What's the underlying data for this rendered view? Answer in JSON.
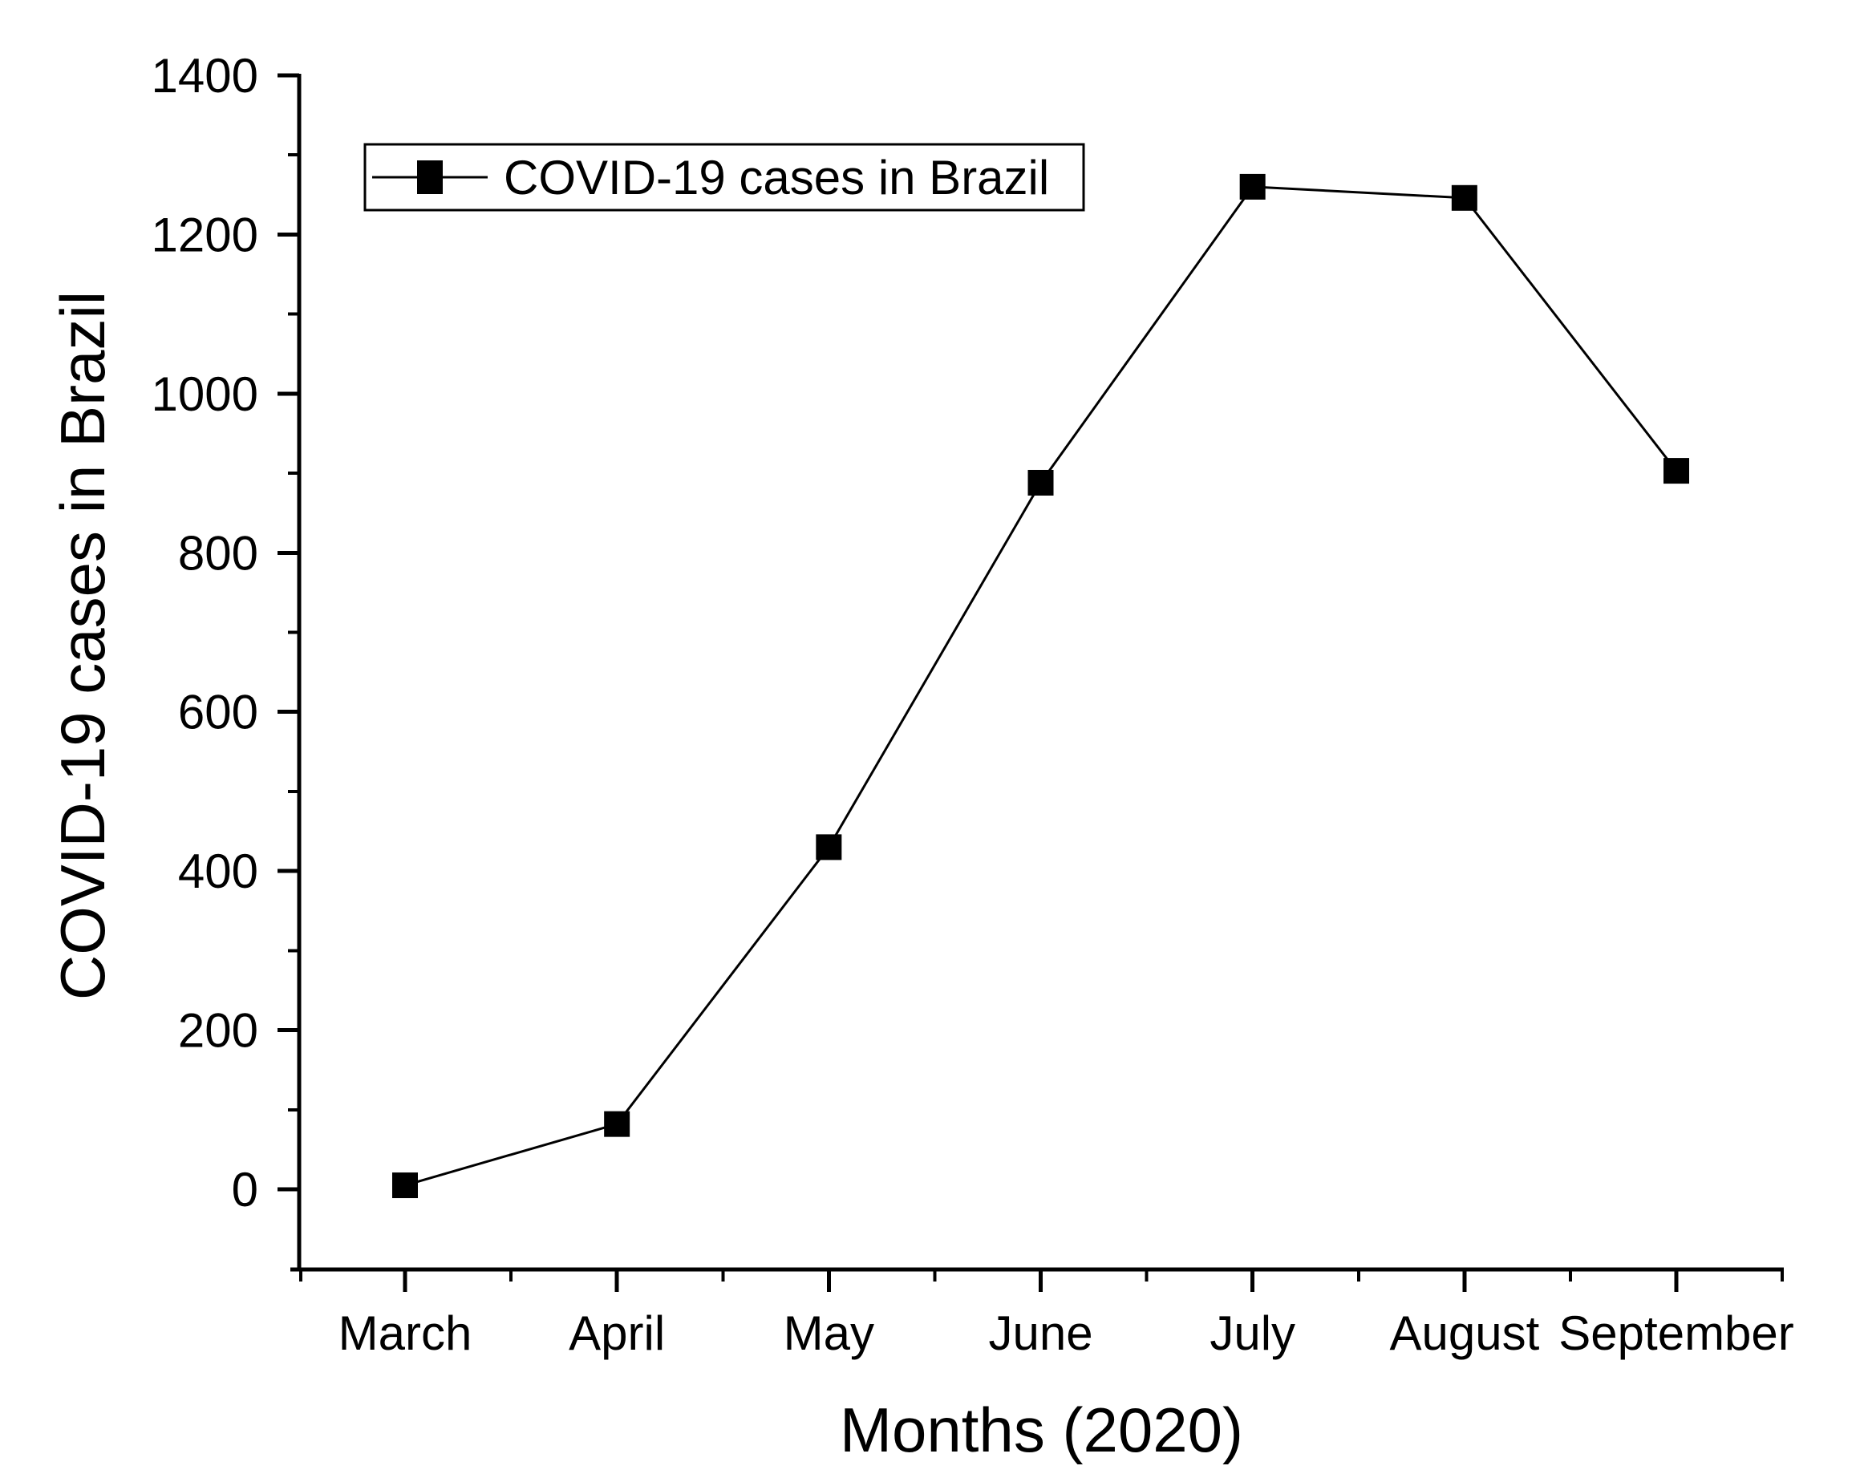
{
  "figure": {
    "background_color": "#ffffff",
    "foreground_color": "#000000"
  },
  "chart_data": {
    "type": "line",
    "title": "",
    "categories": [
      "March",
      "April",
      "May",
      "June",
      "July",
      "August",
      "September"
    ],
    "series": [
      {
        "name": "COVID-19 cases in Brazil",
        "values": [
          5,
          82,
          430,
          888,
          1260,
          1246,
          903
        ],
        "line_color": "#000000",
        "marker": "filled-square",
        "marker_color": "#000000"
      }
    ],
    "xlabel": "Months (2020)",
    "ylabel": "COVID-19 cases in Brazil",
    "ylim": [
      0,
      1400
    ],
    "yticks": [
      0,
      200,
      400,
      600,
      800,
      1000,
      1200,
      1400
    ],
    "ytick_minor_step": 100,
    "grid": false,
    "legend": {
      "visible": true,
      "position": "top-left",
      "border": true,
      "entries": [
        "COVID-19 cases in Brazil"
      ]
    }
  }
}
